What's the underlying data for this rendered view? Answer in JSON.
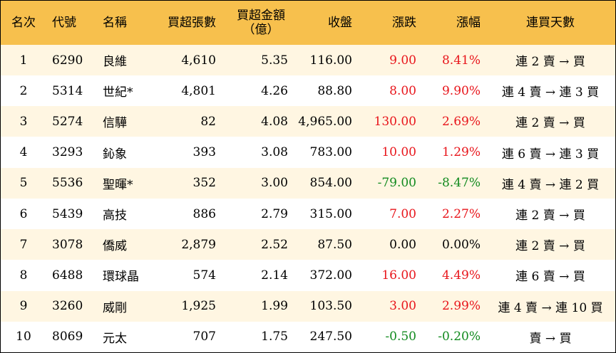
{
  "header": {
    "rank": "名次",
    "code": "代號",
    "name": "名稱",
    "net_buy_lots": "買超張數",
    "net_buy_amount_line1": "買超金額",
    "net_buy_amount_line2": "（億）",
    "close": "收盤",
    "change": "漲跌",
    "change_pct": "漲幅",
    "streak": "連買天數"
  },
  "colors": {
    "header_bg": "#f7c04d",
    "odd_row_bg": "#fff6e2",
    "up": "#e8151b",
    "down": "#118a1e"
  },
  "rows": [
    {
      "rank": "1",
      "code": "6290",
      "name": "良維",
      "lots": "4,610",
      "amount": "5.35",
      "close": "116.00",
      "change": "9.00",
      "pct": "8.41%",
      "streak": "連 2 賣 → 買",
      "dir": "up"
    },
    {
      "rank": "2",
      "code": "5314",
      "name": "世紀*",
      "lots": "4,801",
      "amount": "4.26",
      "close": "88.80",
      "change": "8.00",
      "pct": "9.90%",
      "streak": "連 4 賣 → 連 3 買",
      "dir": "up"
    },
    {
      "rank": "3",
      "code": "5274",
      "name": "信驊",
      "lots": "82",
      "amount": "4.08",
      "close": "4,965.00",
      "change": "130.00",
      "pct": "2.69%",
      "streak": "連 2 賣 → 買",
      "dir": "up"
    },
    {
      "rank": "4",
      "code": "3293",
      "name": "鈊象",
      "lots": "393",
      "amount": "3.08",
      "close": "783.00",
      "change": "10.00",
      "pct": "1.29%",
      "streak": "連 6 賣 → 連 3 買",
      "dir": "up"
    },
    {
      "rank": "5",
      "code": "5536",
      "name": "聖暉*",
      "lots": "352",
      "amount": "3.00",
      "close": "854.00",
      "change": "-79.00",
      "pct": "-8.47%",
      "streak": "連 4 賣 → 連 2 買",
      "dir": "down"
    },
    {
      "rank": "6",
      "code": "5439",
      "name": "高技",
      "lots": "886",
      "amount": "2.79",
      "close": "315.00",
      "change": "7.00",
      "pct": "2.27%",
      "streak": "連 2 賣 → 買",
      "dir": "up"
    },
    {
      "rank": "7",
      "code": "3078",
      "name": "僑威",
      "lots": "2,879",
      "amount": "2.52",
      "close": "87.50",
      "change": "0.00",
      "pct": "0.00%",
      "streak": "連 2 賣 → 買",
      "dir": "flat"
    },
    {
      "rank": "8",
      "code": "6488",
      "name": "環球晶",
      "lots": "574",
      "amount": "2.14",
      "close": "372.00",
      "change": "16.00",
      "pct": "4.49%",
      "streak": "連 6 賣 → 買",
      "dir": "up"
    },
    {
      "rank": "9",
      "code": "3260",
      "name": "威剛",
      "lots": "1,925",
      "amount": "1.99",
      "close": "103.50",
      "change": "3.00",
      "pct": "2.99%",
      "streak": "連 4 賣 → 連 10 買",
      "dir": "up"
    },
    {
      "rank": "10",
      "code": "8069",
      "name": "元太",
      "lots": "707",
      "amount": "1.75",
      "close": "247.50",
      "change": "-0.50",
      "pct": "-0.20%",
      "streak": "賣 → 買",
      "dir": "down"
    }
  ]
}
